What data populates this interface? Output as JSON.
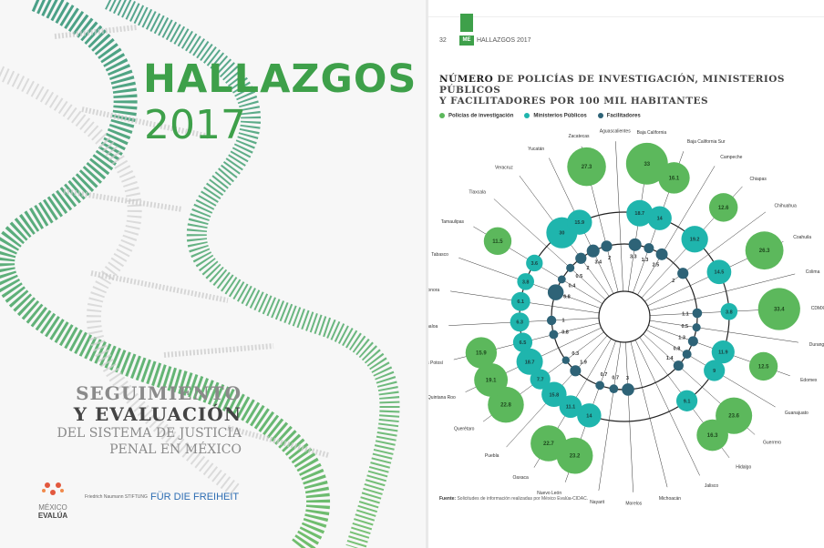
{
  "cover": {
    "title": "HALLAZGOS",
    "year": "2017",
    "subtitle_line1": "SEGUIMIENTO",
    "subtitle_line2": "Y EVALUACIÓN",
    "subtitle_line3": "DEL SISTEMA DE JUSTICIA",
    "subtitle_line4": "PENAL EN MÉXICO",
    "logo_mev_top": "MÉXICO",
    "logo_mev_name": "EVALÚA",
    "logo_fnf_small": "Friedrich Naumann STIFTUNG",
    "logo_fnf_big": "FÜR DIE FREIHEIT",
    "colors": {
      "green": "#3ea04a",
      "teal": "#20b4a8"
    }
  },
  "inner": {
    "page_number": "32",
    "page_tag": "ME",
    "page_header": "HALLAZGOS 2017",
    "title_bold": "NÚMERO",
    "title_rest": " DE POLICÍAS DE INVESTIGACIÓN, MINISTERIOS PÚBLICOS",
    "title_line2": "Y FACILITADORES POR 100 MIL HABITANTES",
    "legend": [
      {
        "label": "Policías de investigación",
        "color": "#5cb85c"
      },
      {
        "label": "Ministerios Públicos",
        "color": "#1fb5ad"
      },
      {
        "label": "Facilitadores",
        "color": "#2e6377"
      }
    ],
    "source_bold": "Fuente:",
    "source_text": " Solicitudes de información realizadas por México Evalúa-CIDAC."
  },
  "chart_data": {
    "type": "radial-bubble",
    "series_names": [
      "Policías de investigación",
      "Ministerios Públicos",
      "Facilitadores"
    ],
    "states": [
      {
        "name": "Aguascalientes",
        "pol": null,
        "mp": null,
        "fac": null
      },
      {
        "name": "Baja California",
        "pol": 33,
        "mp": 18.7,
        "fac": 3.3
      },
      {
        "name": "Baja California Sur",
        "pol": 16.1,
        "mp": 14,
        "fac": 1.3
      },
      {
        "name": "Campeche",
        "pol": null,
        "mp": null,
        "fac": 2.5
      },
      {
        "name": "Chiapas",
        "pol": 12.6,
        "mp": 19.2,
        "fac": null
      },
      {
        "name": "Chihuahua",
        "pol": null,
        "mp": null,
        "fac": 2
      },
      {
        "name": "Coahuila",
        "pol": 26.3,
        "mp": 14.5,
        "fac": null
      },
      {
        "name": "Colima",
        "pol": null,
        "mp": null,
        "fac": null
      },
      {
        "name": "CDMX",
        "pol": 33.4,
        "mp": 3.8,
        "fac": 1.1
      },
      {
        "name": "Durango",
        "pol": null,
        "mp": null,
        "fac": 0.5
      },
      {
        "name": "Edomex",
        "pol": 12.5,
        "mp": 11.9,
        "fac": 1.3
      },
      {
        "name": "Guanajuato",
        "pol": null,
        "mp": 9,
        "fac": 0.8
      },
      {
        "name": "Guerrero",
        "pol": 23.6,
        "mp": null,
        "fac": 1.4
      },
      {
        "name": "Hidalgo",
        "pol": 16.3,
        "mp": 9.1,
        "fac": null
      },
      {
        "name": "Jalisco",
        "pol": null,
        "mp": null,
        "fac": null
      },
      {
        "name": "Michoacán",
        "pol": null,
        "mp": null,
        "fac": null
      },
      {
        "name": "Morelos",
        "pol": null,
        "mp": null,
        "fac": 3
      },
      {
        "name": "Nayarit",
        "pol": null,
        "mp": null,
        "fac": 0.7
      },
      {
        "name": "Nuevo León",
        "pol": 23.2,
        "mp": 14,
        "fac": 0.7
      },
      {
        "name": "Oaxaca",
        "pol": 22.7,
        "mp": 11.1,
        "fac": null
      },
      {
        "name": "Puebla",
        "pol": null,
        "mp": 15.8,
        "fac": 1.9
      },
      {
        "name": "Querétaro",
        "pol": 22.8,
        "mp": 7.7,
        "fac": 0.3
      },
      {
        "name": "Quintana Roo",
        "pol": 19.1,
        "mp": 18.7,
        "fac": null
      },
      {
        "name": "San Luis Potosí",
        "pol": 15.9,
        "mp": 6.5,
        "fac": 0.8
      },
      {
        "name": "Sinaloa",
        "pol": null,
        "mp": 6.3,
        "fac": 1
      },
      {
        "name": "Sonora",
        "pol": null,
        "mp": 6.1,
        "fac": null
      },
      {
        "name": "Tabasco",
        "pol": null,
        "mp": 3.8,
        "fac": 6.8
      },
      {
        "name": "Tamaulipas",
        "pol": 11.5,
        "mp": 3.6,
        "fac": 0.4
      },
      {
        "name": "Tlaxcala",
        "pol": null,
        "mp": null,
        "fac": 0.5
      },
      {
        "name": "Veracruz",
        "pol": null,
        "mp": 30,
        "fac": 2
      },
      {
        "name": "Yucatán",
        "pol": null,
        "mp": 15.9,
        "fac": 3.4
      },
      {
        "name": "Zacatecas",
        "pol": 27.3,
        "mp": null,
        "fac": 2
      }
    ]
  }
}
